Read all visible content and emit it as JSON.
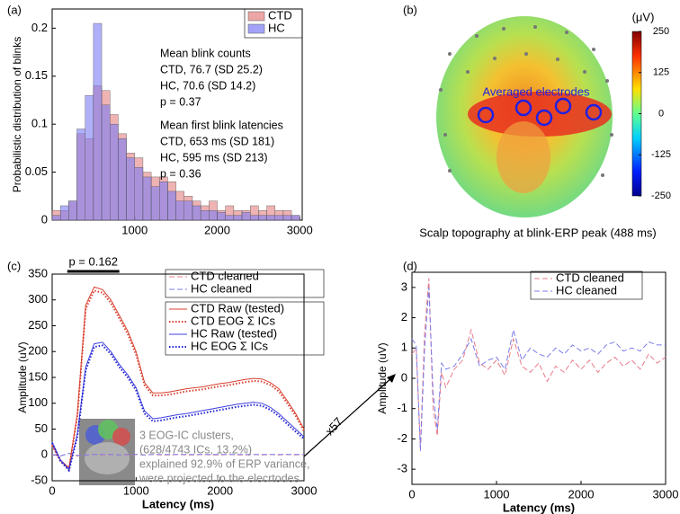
{
  "chart_data": [
    {
      "type": "histogram",
      "panel_label": "(a)",
      "ylabel": "Probabilistic distribution of blinks",
      "bins": [
        0,
        100,
        200,
        300,
        400,
        500,
        600,
        700,
        800,
        900,
        1000,
        1100,
        1200,
        1300,
        1400,
        1500,
        1600,
        1700,
        1800,
        1900,
        2000,
        2100,
        2200,
        2300,
        2400,
        2500,
        2600,
        2700,
        2800,
        2900,
        3000
      ],
      "series": [
        {
          "name": "CTD",
          "color": "#e58080",
          "values": [
            0.01,
            0.01,
            0.02,
            0.09,
            0.085,
            0.14,
            0.135,
            0.11,
            0.09,
            0.07,
            0.065,
            0.05,
            0.045,
            0.045,
            0.04,
            0.03,
            0.025,
            0.02,
            0.015,
            0.02,
            0.01,
            0.015,
            0.01,
            0.01,
            0.015,
            0.01,
            0.015,
            0.01,
            0.01,
            0.005
          ]
        },
        {
          "name": "HC",
          "color": "#7b7bf5",
          "values": [
            0.005,
            0.015,
            0.02,
            0.095,
            0.13,
            0.205,
            0.12,
            0.1,
            0.085,
            0.065,
            0.055,
            0.045,
            0.035,
            0.04,
            0.03,
            0.02,
            0.02,
            0.015,
            0.01,
            0.01,
            0.008,
            0.005,
            0.005,
            0.008,
            0.005,
            0.005,
            0.005,
            0.005,
            0.005,
            0.005
          ]
        }
      ],
      "xlim": [
        0,
        3030
      ],
      "xticks": [
        1000,
        2000,
        3000
      ],
      "ylim": [
        0,
        0.22
      ],
      "yticks": [
        0,
        0.05,
        0.1,
        0.15,
        0.2
      ],
      "annotations": [
        "Mean blink counts",
        "CTD, 76.7 (SD 25.2)",
        "HC, 70.6 (SD 14.2)",
        "p = 0.37",
        "Mean first blink latencies",
        "CTD, 653 ms (SD 181)",
        "HC, 595 ms (SD 213)",
        "p = 0.36"
      ]
    },
    {
      "type": "image",
      "panel_label": "(b)",
      "caption": "Scalp topography at blink-ERP peak (488 ms)",
      "annotation": "Averaged electrodes",
      "colorbar": {
        "label": "(μV)",
        "lim": [
          -250,
          250
        ],
        "ticks": [
          -250,
          -125,
          0,
          125,
          250
        ]
      }
    },
    {
      "type": "line",
      "panel_label": "(c)",
      "xlabel": "Latency (ms)",
      "ylabel": "Amplitude (uV)",
      "x": [
        0,
        100,
        200,
        300,
        400,
        500,
        600,
        700,
        800,
        900,
        1000,
        1100,
        1200,
        1300,
        1400,
        1500,
        1600,
        1700,
        1800,
        1900,
        2000,
        2100,
        2200,
        2300,
        2400,
        2500,
        2600,
        2700,
        2800,
        2900,
        3000
      ],
      "series": [
        {
          "name": "CTD cleaned",
          "color": "#e87c8c",
          "dash": "dashed",
          "values": [
            0,
            -2,
            3,
            -2,
            0,
            1,
            0,
            1,
            0,
            0,
            1,
            0,
            1,
            0,
            0,
            1,
            0,
            0,
            1,
            0,
            0,
            1,
            0,
            0,
            1,
            0,
            1,
            0,
            1,
            0,
            1
          ]
        },
        {
          "name": "HC cleaned",
          "color": "#7c7ce8",
          "dash": "dashed",
          "values": [
            1,
            -2,
            3,
            -1,
            0,
            1,
            1,
            1,
            0,
            1,
            1,
            0,
            1,
            1,
            1,
            1,
            1,
            1,
            1,
            1,
            1,
            1,
            1,
            1,
            1,
            1,
            1,
            1,
            1,
            1,
            1
          ]
        },
        {
          "name": "CTD Raw (tested)",
          "color": "#d94030",
          "dash": "solid",
          "values": [
            20,
            -10,
            -25,
            80,
            290,
            325,
            320,
            300,
            270,
            240,
            200,
            140,
            120,
            120,
            122,
            125,
            128,
            130,
            132,
            135,
            138,
            140,
            143,
            146,
            148,
            147,
            140,
            128,
            105,
            80,
            50
          ]
        },
        {
          "name": "CTD EOG Σ ICs",
          "color": "#d94030",
          "dash": "dotted",
          "values": [
            18,
            -12,
            -27,
            75,
            283,
            318,
            314,
            294,
            264,
            234,
            194,
            135,
            115,
            115,
            117,
            120,
            123,
            125,
            127,
            130,
            133,
            135,
            138,
            141,
            143,
            142,
            135,
            123,
            100,
            76,
            46
          ]
        },
        {
          "name": "HC Raw (tested)",
          "color": "#4040e0",
          "dash": "solid",
          "values": [
            25,
            -10,
            -28,
            40,
            170,
            215,
            218,
            200,
            175,
            155,
            130,
            85,
            70,
            72,
            75,
            78,
            80,
            83,
            86,
            89,
            92,
            95,
            98,
            100,
            102,
            100,
            92,
            80,
            65,
            50,
            35
          ]
        },
        {
          "name": "HC EOG Σ ICs",
          "color": "#2020d0",
          "dash": "dotted",
          "values": [
            23,
            -12,
            -30,
            36,
            164,
            209,
            212,
            195,
            170,
            150,
            125,
            80,
            65,
            67,
            70,
            73,
            75,
            78,
            81,
            84,
            87,
            90,
            93,
            95,
            97,
            95,
            87,
            75,
            60,
            45,
            31
          ]
        }
      ],
      "xlim": [
        0,
        3000
      ],
      "xticks": [
        0,
        1000,
        2000,
        3000
      ],
      "ylim": [
        -50,
        350
      ],
      "yticks": [
        -50,
        0,
        50,
        100,
        150,
        200,
        250,
        300,
        350
      ],
      "sig_bar": {
        "label": "p = 0.162",
        "x": [
          180,
          800
        ]
      },
      "annotations": [
        "3 EOG-IC clusters,",
        "(628/4743 ICs, 13.2%)",
        "explained 92.9% of ERP variance,",
        "were projected to the elecrtodes"
      ],
      "arrow_label": "x57"
    },
    {
      "type": "line",
      "panel_label": "(d)",
      "xlabel": "Latency (ms)",
      "ylabel": "Amplitude (uV)",
      "x": [
        0,
        50,
        100,
        150,
        200,
        250,
        300,
        350,
        400,
        500,
        600,
        700,
        800,
        900,
        1000,
        1100,
        1200,
        1300,
        1400,
        1500,
        1600,
        1700,
        1800,
        1900,
        2000,
        2100,
        2200,
        2300,
        2400,
        2500,
        2600,
        2700,
        2800,
        2900,
        3000
      ],
      "series": [
        {
          "name": "CTD cleaned",
          "color": "#e87c8c",
          "dash": "dashed",
          "values": [
            0.8,
            1.0,
            -2.3,
            1.5,
            3.3,
            -1.0,
            -1.9,
            0.2,
            -0.3,
            0.3,
            0.6,
            1.6,
            0.5,
            0.3,
            0.6,
            0.1,
            1.3,
            0.4,
            0.2,
            0.5,
            -0.1,
            0.4,
            0.2,
            0.6,
            0.3,
            0.6,
            0.2,
            0.5,
            0.7,
            0.4,
            0.6,
            0.3,
            0.8,
            0.5,
            0.7
          ]
        },
        {
          "name": "HC cleaned",
          "color": "#7c7ce8",
          "dash": "dashed",
          "values": [
            1.3,
            1.1,
            -2.4,
            1.0,
            3.0,
            -0.5,
            -1.7,
            0.5,
            0.3,
            0.4,
            0.8,
            1.3,
            0.4,
            0.6,
            0.7,
            0.3,
            1.6,
            0.6,
            1.0,
            0.8,
            0.7,
            1.0,
            0.8,
            1.1,
            0.9,
            1.0,
            0.8,
            1.1,
            1.2,
            0.9,
            1.0,
            0.9,
            1.2,
            1.1,
            1.1
          ]
        }
      ],
      "xlim": [
        0,
        3000
      ],
      "xticks": [
        0,
        1000,
        2000,
        3000
      ],
      "ylim": [
        -3.5,
        3.5
      ],
      "yticks": [
        -3,
        -2,
        -1,
        0,
        1,
        2,
        3
      ]
    }
  ]
}
